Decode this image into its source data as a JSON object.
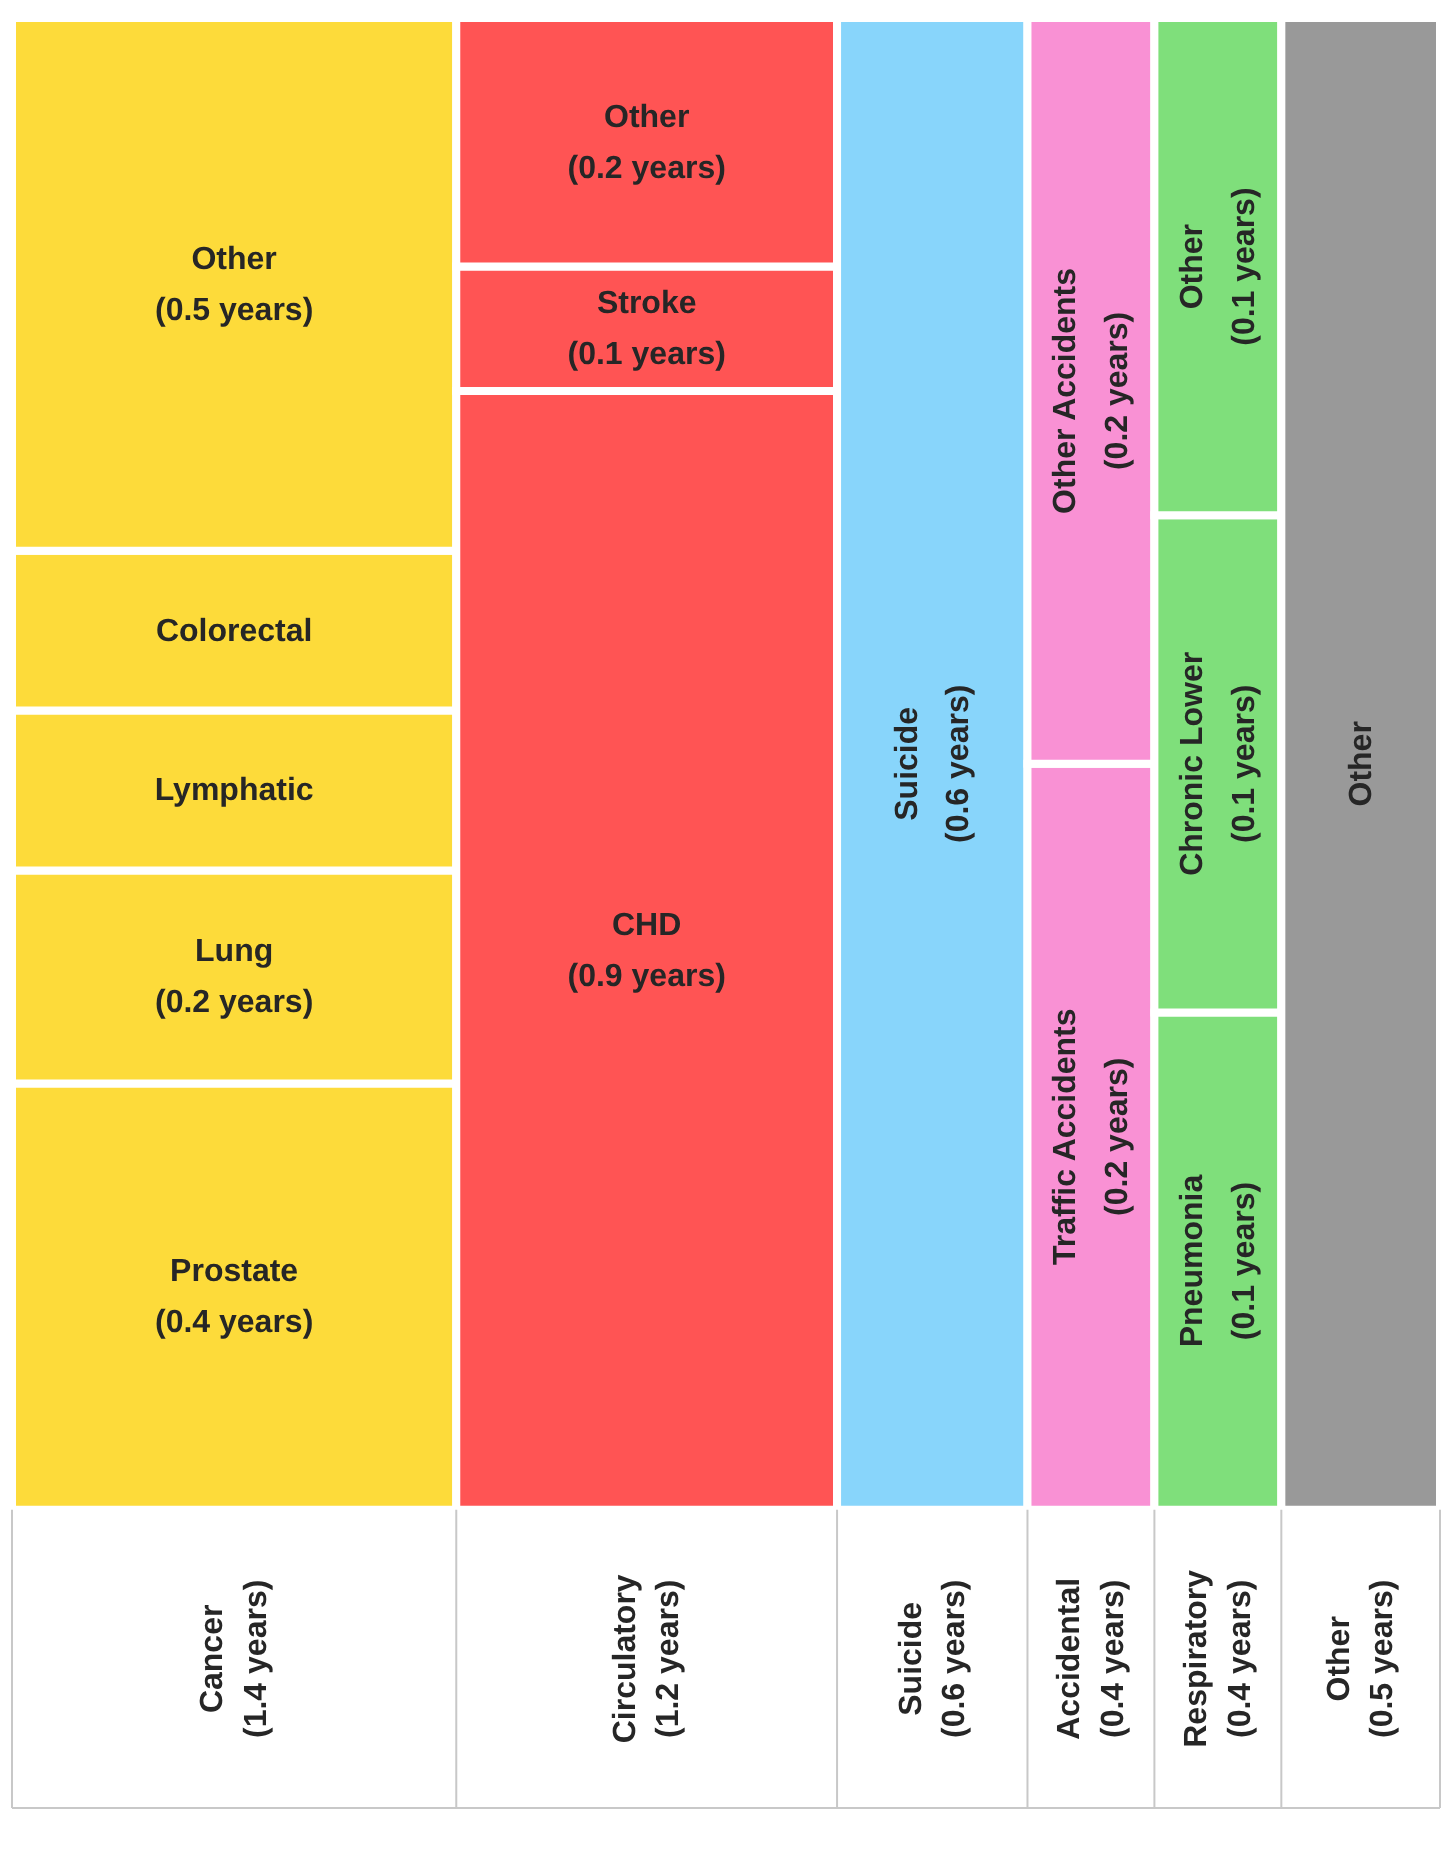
{
  "chart_data": {
    "type": "other",
    "categories": [
      "Cancer",
      "Circulatory",
      "Suicide",
      "Accidental",
      "Respiratory",
      "Other"
    ],
    "values": [
      1.4,
      1.2,
      0.6,
      0.4,
      0.4,
      0.5
    ],
    "value_labels": [
      "(1.4 years)",
      "(1.2 years)",
      "(0.6 years)",
      "(0.4 years)",
      "(0.4 years)",
      "(0.5 years)"
    ],
    "series": [
      {
        "colors": [
          "#fddb3a",
          "#ff5454",
          "#88d5fb",
          "#f991d4",
          "#7fdf7b",
          "#999999"
        ],
        "values": [
          0.4,
          0.9,
          0.6,
          0.2,
          0.1,
          null
        ],
        "value_labels": [
          "Prostate\n(0.4 years)",
          "CHD\n(0.9 years)",
          "Suicide\n(0.6 years)",
          "Traffic Accidents\n(0.2 years)",
          "Pneumonia\n(0.1 years)",
          "Other"
        ]
      },
      {
        "colors": [
          "#fddb3a",
          "#ff5454",
          null,
          "#f991d4",
          "#7fdf7b",
          null
        ],
        "values": [
          0.2,
          0.1,
          null,
          0.2,
          0.1,
          null
        ],
        "value_labels": [
          "Lung\n(0.2 years)",
          "Stroke\n(0.1 years)",
          null,
          "Other Accidents\n(0.2 years)",
          "Chronic Lower\n(0.1 years)",
          null
        ]
      },
      {
        "colors": [
          "#fddb3a",
          "#ff5454",
          null,
          null,
          "#7fdf7b",
          null
        ],
        "values": [
          null,
          0.2,
          null,
          null,
          0.1,
          null
        ],
        "value_labels": [
          "Lymphatic",
          "Other\n(0.2 years)",
          null,
          null,
          "Other\n(0.1 years)",
          null
        ]
      },
      {
        "colors": [
          "#fddb3a",
          null,
          null,
          null,
          null,
          null
        ],
        "values": [
          null,
          null,
          null,
          null,
          null,
          null
        ],
        "value_labels": [
          "Colorectal",
          null,
          null,
          null,
          null,
          null
        ]
      },
      {
        "colors": [
          "#fddb3a",
          null,
          null,
          null,
          null,
          null
        ],
        "values": [
          0.5,
          null,
          null,
          null,
          null,
          null
        ],
        "value_labels": [
          "Other\n(0.5 years)",
          null,
          null,
          null,
          null,
          null
        ]
      }
    ]
  }
}
